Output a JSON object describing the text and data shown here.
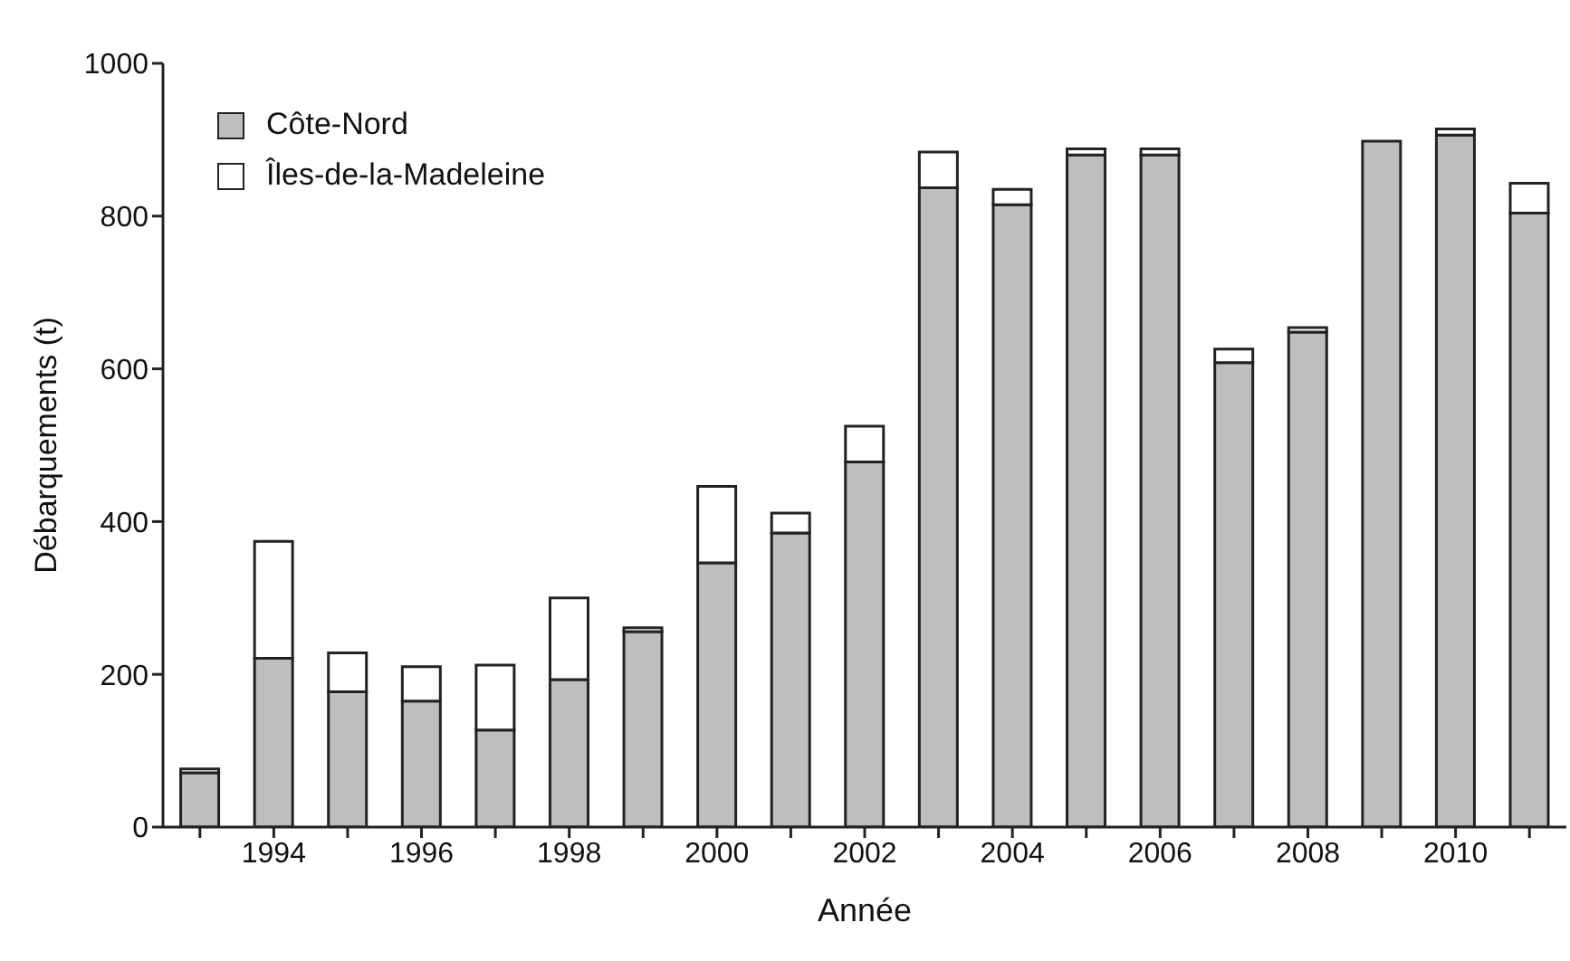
{
  "chart_data": {
    "type": "bar",
    "stacked": true,
    "xlabel": "Année",
    "ylabel": "Débarquements (t)",
    "categories": [
      null,
      "1994",
      null,
      "1996",
      null,
      "1998",
      null,
      "2000",
      null,
      "2002",
      null,
      "2004",
      null,
      "2006",
      null,
      "2008",
      null,
      "2010",
      null
    ],
    "series": [
      {
        "name": "Côte-Nord",
        "color": "#bebebe",
        "values": [
          71,
          221,
          177,
          165,
          127,
          193,
          256,
          346,
          385,
          478,
          837,
          815,
          880,
          880,
          608,
          648,
          898,
          906,
          804
        ]
      },
      {
        "name": "Îles-de-la-Madeleine",
        "color": "#ffffff",
        "values": [
          5,
          153,
          51,
          45,
          85,
          107,
          5,
          100,
          26,
          47,
          47,
          20,
          8,
          8,
          18,
          6,
          0,
          8,
          39
        ]
      }
    ],
    "ylim": [
      0,
      1000
    ],
    "yticks": [
      0,
      200,
      400,
      600,
      800,
      1000
    ],
    "legend": "top left"
  }
}
